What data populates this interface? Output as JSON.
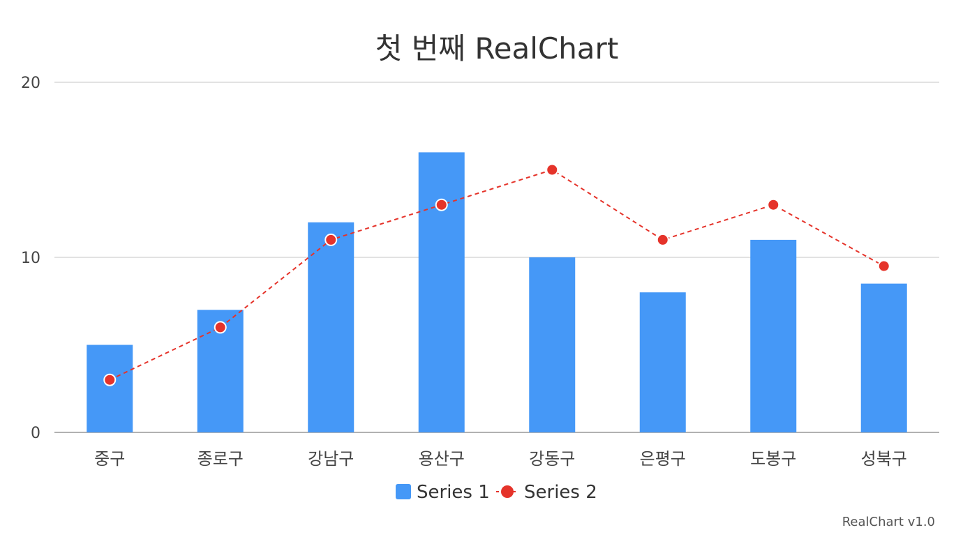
{
  "chart_data": {
    "type": "bar",
    "title": "첫 번째 RealChart",
    "categories": [
      "중구",
      "종로구",
      "강남구",
      "용산구",
      "강동구",
      "은평구",
      "도봉구",
      "성북구"
    ],
    "series": [
      {
        "name": "Series 1",
        "type": "bar",
        "color": "#4598f7",
        "values": [
          5,
          7,
          12,
          16,
          10,
          8,
          11,
          8.5
        ]
      },
      {
        "name": "Series 2",
        "type": "line",
        "style": "dashed",
        "color": "#e5332a",
        "values": [
          3,
          6,
          11,
          13,
          15,
          11,
          13,
          9.5
        ]
      }
    ],
    "ylim": [
      0,
      20
    ],
    "yticks": [
      "0",
      "10",
      "20"
    ],
    "grid": true,
    "legend_position": "bottom"
  },
  "credit": "RealChart v1.0"
}
